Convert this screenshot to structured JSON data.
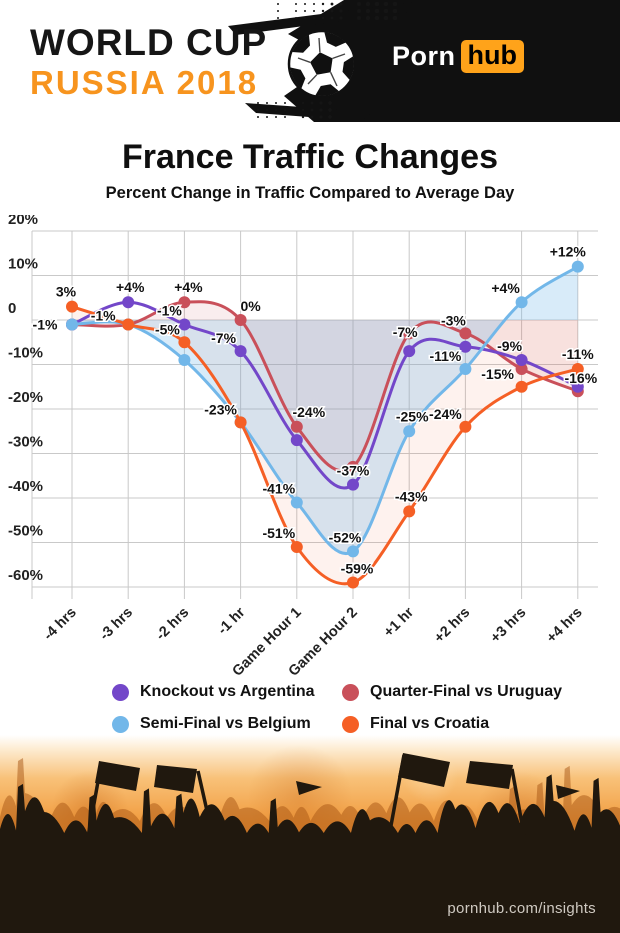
{
  "header": {
    "world_cup": "WORLD CUP",
    "russia": "RUSSIA 2018",
    "brand_porn": "Porn",
    "brand_hub": "hub",
    "ball_icon": "soccer-ball",
    "brand_orange": "#ffa31a",
    "accent_orange": "#f7941e"
  },
  "chart_data": {
    "type": "line",
    "title": "France Traffic Changes",
    "subtitle": "Percent Change in Traffic Compared to Average Day",
    "categories": [
      "-4 hrs",
      "-3 hrs",
      "-2 hrs",
      "-1 hr",
      "Game Hour 1",
      "Game Hour 2",
      "+1 hr",
      "+2 hrs",
      "+3 hrs",
      "+4 hrs"
    ],
    "y_ticks": [
      "20%",
      "10%",
      "0",
      "-10%",
      "-20%",
      "-30%",
      "-40%",
      "-50%",
      "-60%"
    ],
    "y_tick_values": [
      20,
      10,
      0,
      -10,
      -20,
      -30,
      -40,
      -50,
      -60
    ],
    "ylim": [
      -65,
      22
    ],
    "grid": true,
    "legend_position": "bottom",
    "series": [
      {
        "name": "Knockout vs Argentina",
        "color": "#7347c9",
        "fill": null,
        "values": [
          -1,
          4,
          -1,
          -7,
          -27,
          -37,
          -7,
          -6,
          -9,
          -15
        ],
        "labels": [
          "-1%",
          "+4%",
          "-1%",
          "-7%",
          null,
          "-37%",
          "-7%",
          null,
          "-9%",
          null
        ],
        "label_offsets": [
          [
            -27,
            5
          ],
          [
            2,
            -10
          ],
          [
            -15,
            -9
          ],
          [
            -17,
            -8
          ],
          null,
          [
            0,
            -9
          ],
          [
            -4,
            -14
          ],
          null,
          [
            -12,
            -9
          ],
          null
        ]
      },
      {
        "name": "Quarter-Final vs Uruguay",
        "color": "#c9505a",
        "fill": "rgba(201,80,90,0.10)",
        "values": [
          -1,
          -1,
          4,
          0,
          -24,
          -33,
          -3,
          -3,
          -11,
          -16
        ],
        "labels": [
          null,
          null,
          "+4%",
          "0%",
          "-24%",
          null,
          null,
          "-3%",
          null,
          "-16%"
        ],
        "label_offsets": [
          null,
          null,
          [
            4,
            -10
          ],
          [
            10,
            -9
          ],
          [
            12,
            -10
          ],
          null,
          null,
          [
            -12,
            -8
          ],
          null,
          [
            3,
            -8
          ]
        ]
      },
      {
        "name": "Semi-Final vs Belgium",
        "color": "#72b7e9",
        "fill": "rgba(114,183,233,0.28)",
        "values": [
          -1,
          -1,
          -9,
          -23,
          -41,
          -52,
          -25,
          -11,
          4,
          12
        ],
        "labels": [
          null,
          null,
          null,
          null,
          "-41%",
          "-52%",
          "-25%",
          "-11%",
          "+4%",
          "+12%"
        ],
        "label_offsets": [
          null,
          null,
          null,
          null,
          [
            -18,
            -9
          ],
          [
            -8,
            -9
          ],
          [
            3,
            -10
          ],
          [
            -20,
            -8
          ],
          [
            -16,
            -9
          ],
          [
            -10,
            -10
          ]
        ]
      },
      {
        "name": "Final vs Croatia",
        "color": "#f55f25",
        "fill": "rgba(245,95,37,0.08)",
        "values": [
          3,
          -1,
          -5,
          -23,
          -51,
          -59,
          -43,
          -24,
          -15,
          -11
        ],
        "labels": [
          "3%",
          "-1%",
          "-5%",
          "-23%",
          "-51%",
          "-59%",
          "-43%",
          "-24%",
          "-15%",
          "-11%"
        ],
        "label_offsets": [
          [
            -6,
            -10
          ],
          [
            -25,
            -4
          ],
          [
            -17,
            -8
          ],
          [
            -20,
            -8
          ],
          [
            -18,
            -9
          ],
          [
            4,
            -9
          ],
          [
            2,
            -10
          ],
          [
            -20,
            -8
          ],
          [
            -24,
            -8
          ],
          [
            0,
            -10
          ]
        ]
      }
    ]
  },
  "legend": {
    "items": [
      {
        "label": "Knockout vs Argentina",
        "color": "#7347c9"
      },
      {
        "label": "Quarter-Final vs Uruguay",
        "color": "#c9505a"
      },
      {
        "label": "Semi-Final vs Belgium",
        "color": "#72b7e9"
      },
      {
        "label": "Final vs Croatia",
        "color": "#f55f25"
      }
    ]
  },
  "footer": {
    "url": "pornhub.com/insights"
  }
}
